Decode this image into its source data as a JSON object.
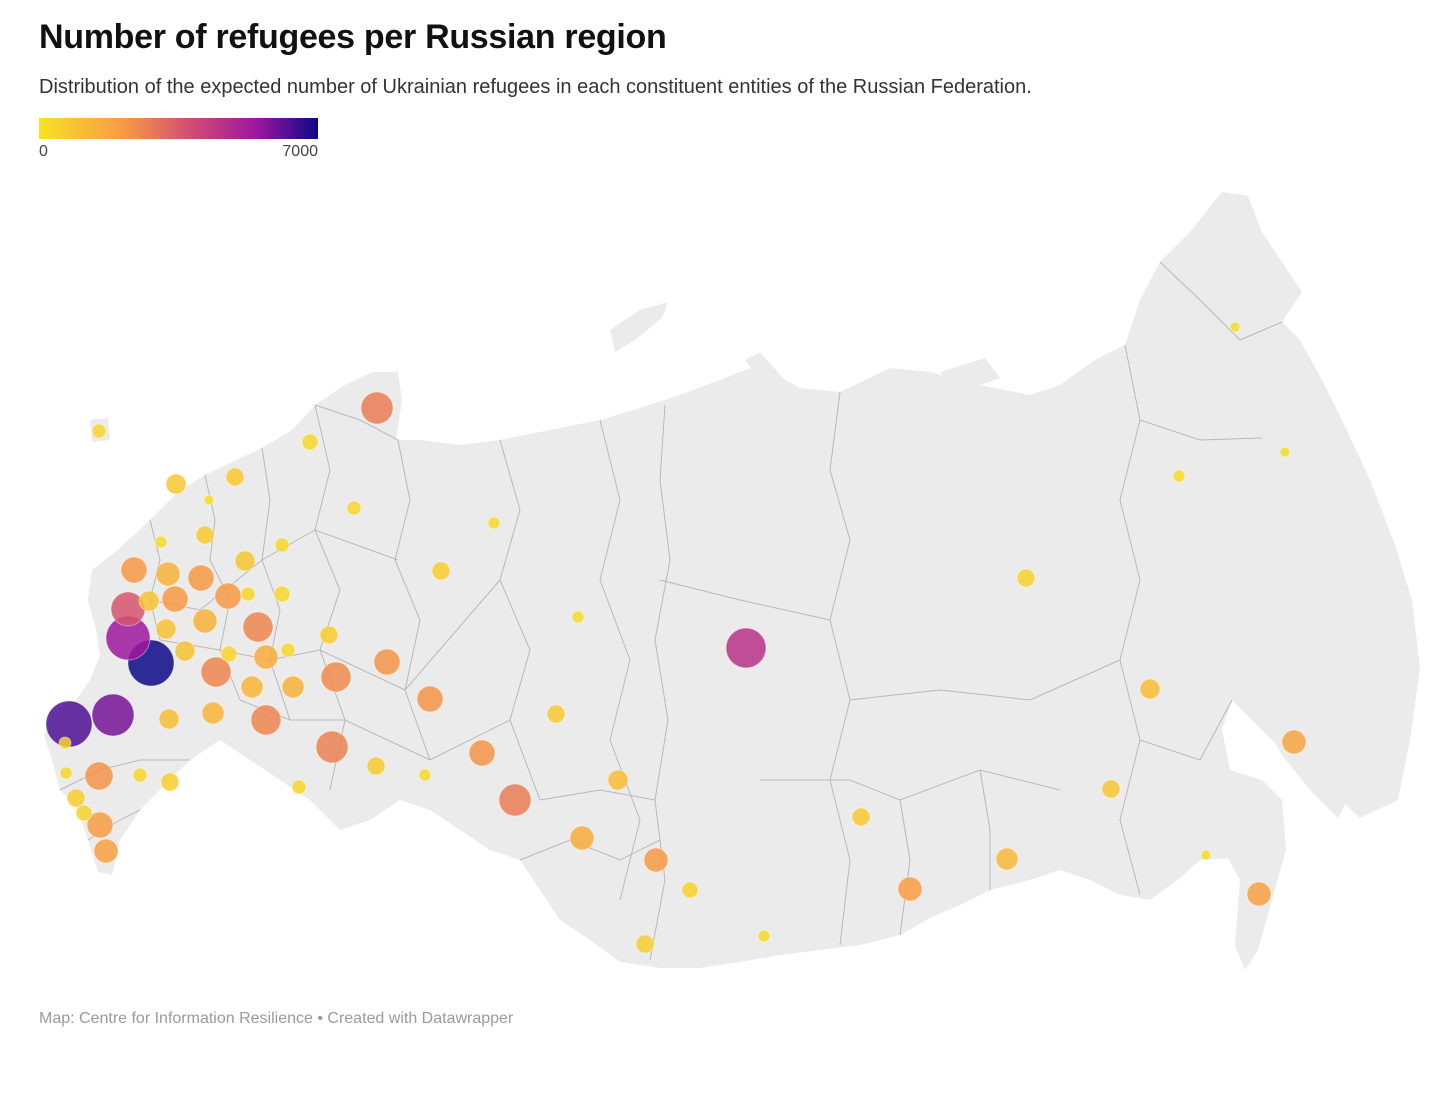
{
  "header": {
    "title": "Number of refugees per Russian region",
    "subtitle": "Distribution of the expected number of Ukrainian refugees in each constituent entities of the Russian Federation."
  },
  "legend": {
    "min_label": "0",
    "max_label": "7000",
    "min_value": 0,
    "max_value": 7000,
    "color_stops": [
      "#f7e225",
      "#f89b44",
      "#d04b73",
      "#9c179e",
      "#0d0887"
    ]
  },
  "map": {
    "land_color": "#ebebeb",
    "border_color": "#b8b8b8",
    "marker_opacity": 0.85
  },
  "footer": {
    "source": "Map: Centre for Information Resilience • Created with Datawrapper"
  }
}
